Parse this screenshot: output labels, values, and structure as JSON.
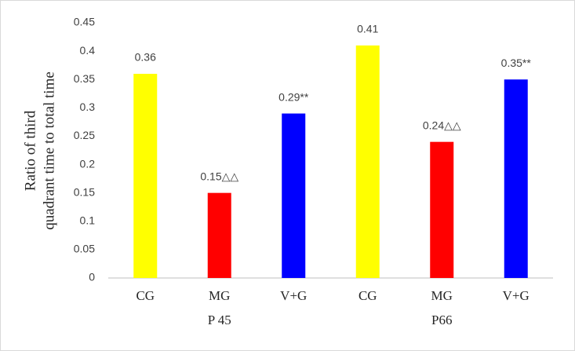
{
  "chart_data": {
    "type": "bar",
    "ylabel": [
      "Ratio of third",
      "quadrant time to total time"
    ],
    "categories": [
      "CG",
      "MG",
      "V+G",
      "CG",
      "MG",
      "V+G"
    ],
    "group_labels": [
      "P 45",
      "P66"
    ],
    "values": [
      0.36,
      0.15,
      0.29,
      0.41,
      0.24,
      0.35
    ],
    "value_labels": [
      "0.36",
      "0.15△△",
      "0.29**",
      "0.41",
      "0.24△△",
      "0.35**"
    ],
    "colors": [
      "#ffff00",
      "#ff0000",
      "#0000ff",
      "#ffff00",
      "#ff0000",
      "#0000ff"
    ],
    "ylim": [
      0,
      0.45
    ],
    "yticks": [
      0,
      0.05,
      0.1,
      0.15,
      0.2,
      0.25,
      0.3,
      0.35,
      0.4,
      0.45
    ],
    "grid": false
  }
}
